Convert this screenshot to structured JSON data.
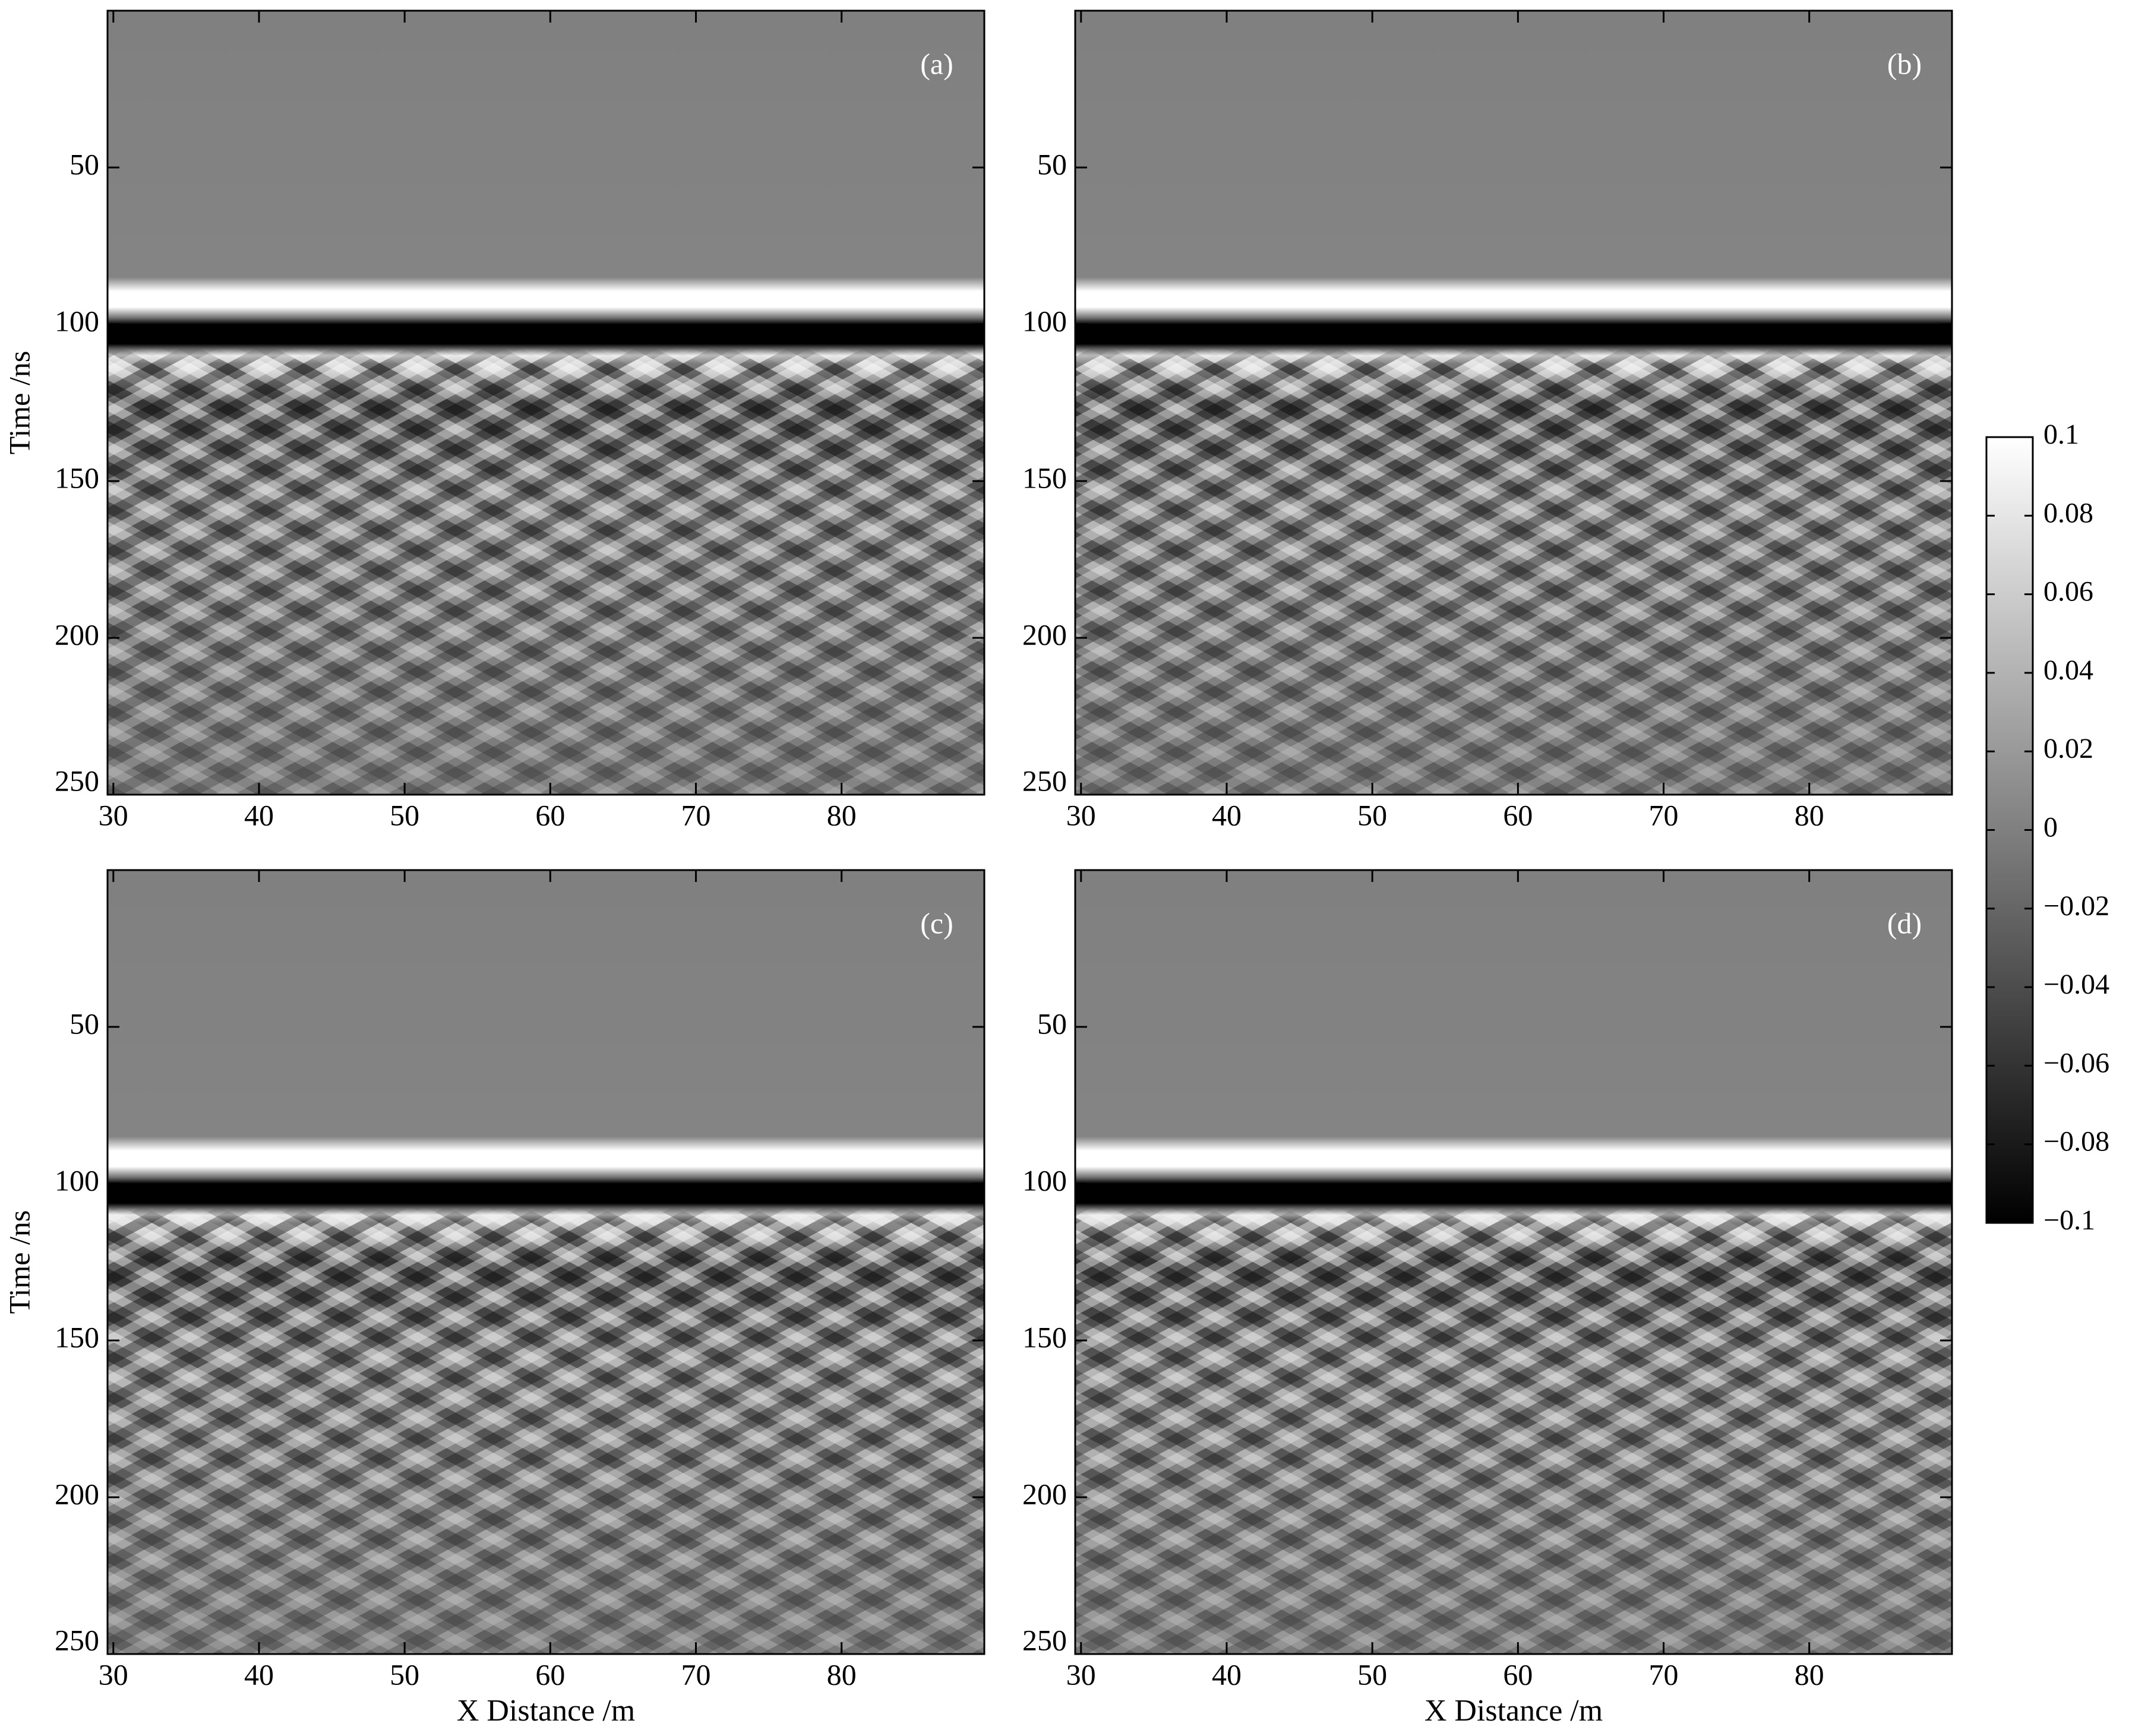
{
  "chart_data": [
    {
      "type": "image",
      "annotation": "(a)",
      "colormap": "gray",
      "ylabel": "Time /ns",
      "invert_y": true,
      "xlim": [
        29.6,
        89.8
      ],
      "xticks": [
        30,
        40,
        50,
        60,
        70,
        80
      ],
      "ylim": [
        0,
        250
      ],
      "yticks": [
        50,
        100,
        150,
        200,
        250
      ]
    },
    {
      "type": "image",
      "annotation": "(b)",
      "colormap": "gray",
      "invert_y": true,
      "xlim": [
        29.6,
        89.8
      ],
      "xticks": [
        30,
        40,
        50,
        60,
        70,
        80
      ],
      "ylim": [
        0,
        250
      ],
      "yticks": [
        50,
        100,
        150,
        200,
        250
      ]
    },
    {
      "type": "image",
      "annotation": "(c)",
      "colormap": "gray",
      "ylabel": "Time /ns",
      "xlabel": "X Distance /m",
      "invert_y": true,
      "xlim": [
        29.6,
        89.8
      ],
      "xticks": [
        30,
        40,
        50,
        60,
        70,
        80
      ],
      "ylim": [
        0,
        250
      ],
      "yticks": [
        50,
        100,
        150,
        200,
        250
      ]
    },
    {
      "type": "image",
      "annotation": "(d)",
      "colormap": "gray",
      "xlabel": "X Distance /m",
      "invert_y": true,
      "xlim": [
        29.6,
        89.8
      ],
      "xticks": [
        30,
        40,
        50,
        60,
        70,
        80
      ],
      "ylim": [
        0,
        250
      ],
      "yticks": [
        50,
        100,
        150,
        200,
        250
      ]
    },
    {
      "type": "colorbar",
      "colormap": "gray",
      "zlim": [
        -0.1,
        0.1
      ],
      "zticks": [
        0.1,
        0.08,
        0.06,
        0.04,
        0.02,
        0,
        {
          "value": -0.02,
          "label": "−0.02"
        },
        {
          "value": -0.04,
          "label": "−0.04"
        },
        {
          "value": -0.06,
          "label": "−0.06"
        },
        {
          "value": -0.08,
          "label": "−0.08"
        },
        {
          "value": -0.1,
          "label": "−0.1"
        }
      ]
    }
  ]
}
